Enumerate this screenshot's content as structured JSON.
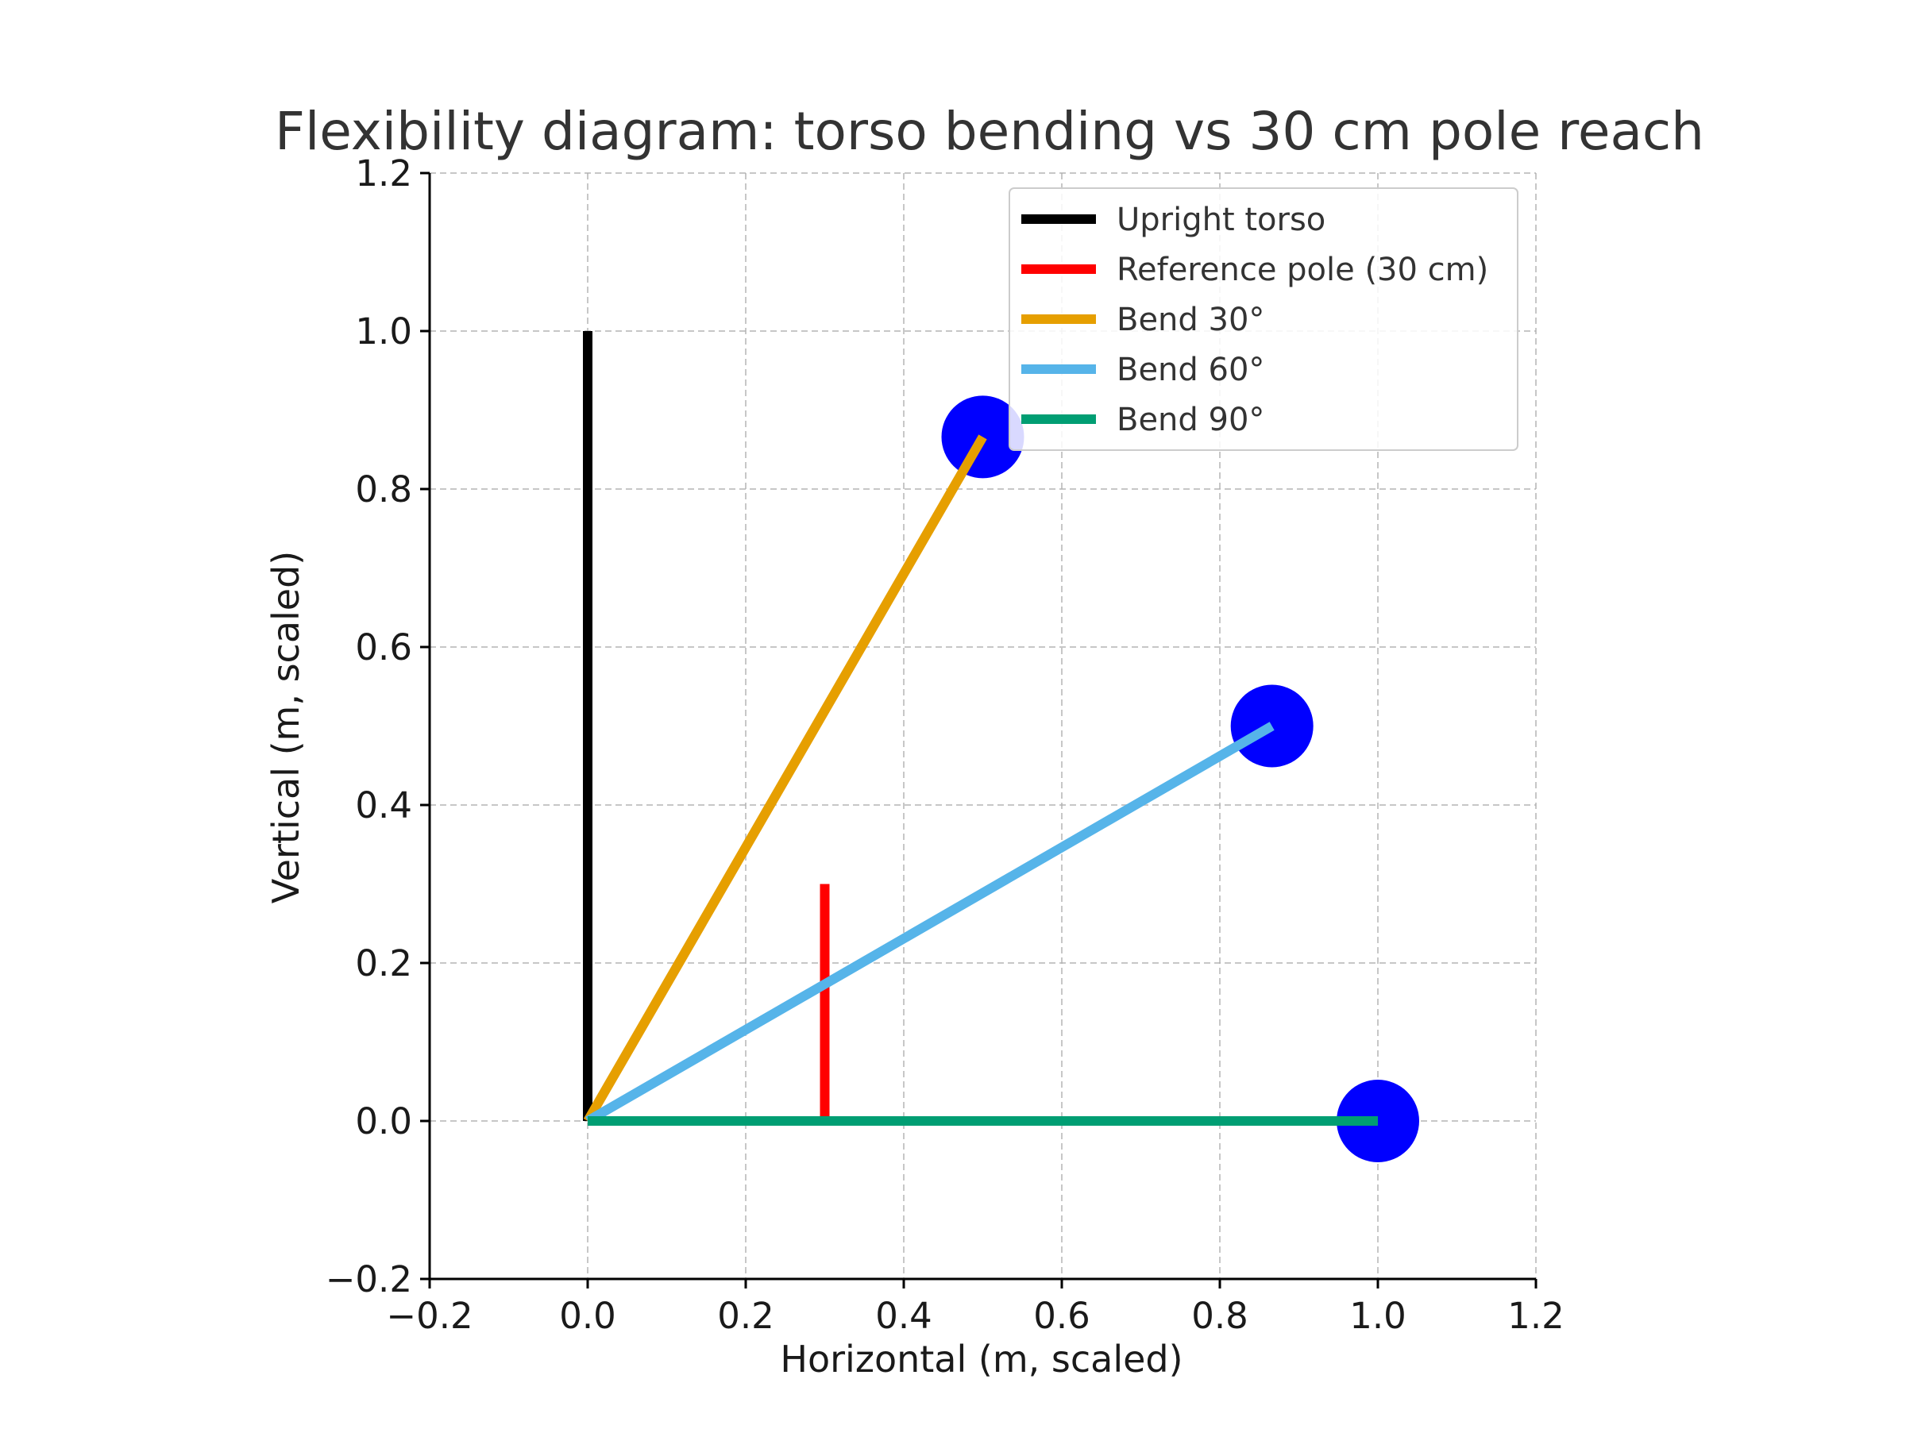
{
  "chart_data": {
    "type": "line",
    "title": "Flexibility diagram: torso bending vs 30 cm pole reach",
    "xlabel": "Horizontal (m, scaled)",
    "ylabel": "Vertical (m, scaled)",
    "xlim": [
      -0.2,
      1.2
    ],
    "ylim": [
      -0.2,
      1.2
    ],
    "xticks": [
      -0.2,
      0.0,
      0.2,
      0.4,
      0.6,
      0.8,
      1.0,
      1.2
    ],
    "yticks": [
      -0.2,
      0.0,
      0.2,
      0.4,
      0.6,
      0.8,
      1.0,
      1.2
    ],
    "xtick_labels": [
      "−0.2",
      "0.0",
      "0.2",
      "0.4",
      "0.6",
      "0.8",
      "1.0",
      "1.2"
    ],
    "ytick_labels": [
      "−0.2",
      "0.0",
      "0.2",
      "0.4",
      "0.6",
      "0.8",
      "1.0",
      "1.2"
    ],
    "grid": true,
    "legend_position": "top-right",
    "series": [
      {
        "name": "Upright torso",
        "color": "#000000",
        "x": [
          0.0,
          0.0
        ],
        "y": [
          0.0,
          1.0
        ]
      },
      {
        "name": "Reference pole (30 cm)",
        "color": "#ff0000",
        "x": [
          0.3,
          0.3
        ],
        "y": [
          0.0,
          0.3
        ]
      },
      {
        "name": "Bend 30°",
        "color": "#e69f00",
        "x": [
          0.0,
          0.5
        ],
        "y": [
          0.0,
          0.866
        ]
      },
      {
        "name": "Bend 60°",
        "color": "#56b4e9",
        "x": [
          0.0,
          0.866
        ],
        "y": [
          0.0,
          0.5
        ]
      },
      {
        "name": "Bend 90°",
        "color": "#009e73",
        "x": [
          0.0,
          1.0
        ],
        "y": [
          0.0,
          0.0
        ]
      }
    ],
    "markers": {
      "color": "#0000ff",
      "points": [
        {
          "x": 0.5,
          "y": 0.866
        },
        {
          "x": 0.866,
          "y": 0.5
        },
        {
          "x": 1.0,
          "y": 0.0
        }
      ]
    }
  }
}
